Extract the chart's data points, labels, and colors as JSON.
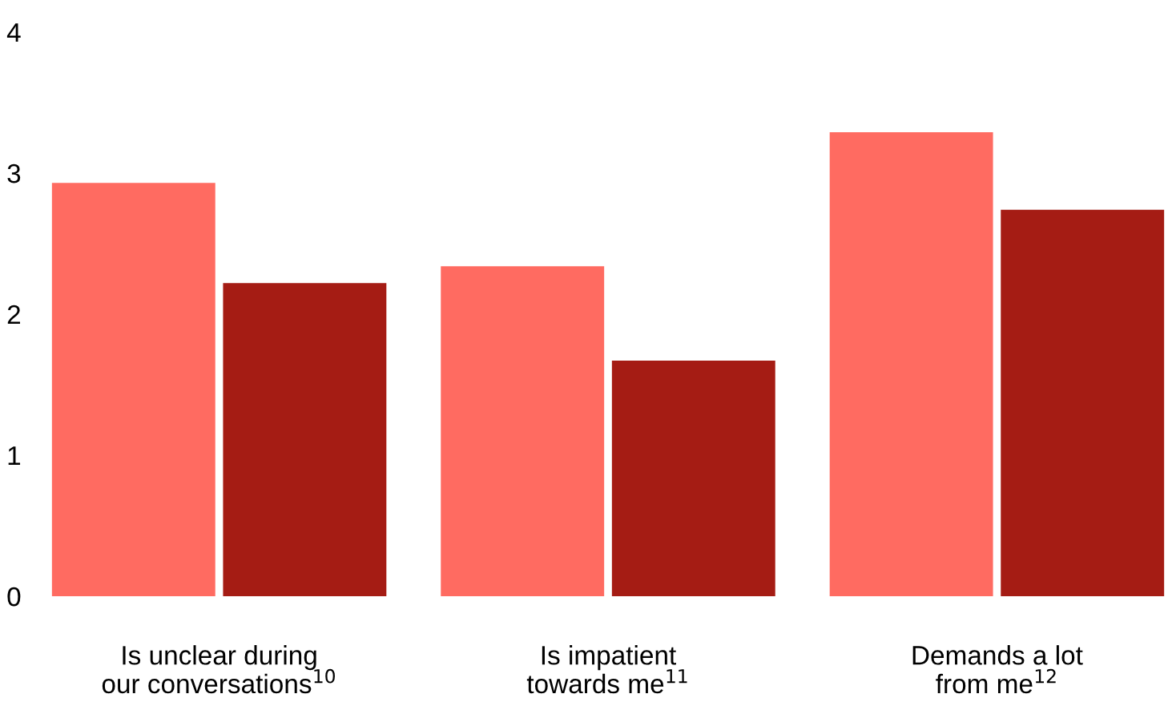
{
  "chart_data": {
    "type": "bar",
    "categories": [
      "Is unclear during\nour conversations$^{10}$",
      "Is impatient\ntowards me$^{11}$",
      "Demands a lot\nfrom me$^{12}$"
    ],
    "series": [
      {
        "color": "#ff6b61",
        "values": [
          2.93,
          2.34,
          3.29
        ]
      },
      {
        "color": "#a51c14",
        "values": [
          2.22,
          1.67,
          2.74
        ]
      }
    ],
    "ylim": [
      0,
      4
    ],
    "yticks": [
      0,
      1,
      2,
      3,
      4
    ],
    "grid": false
  }
}
